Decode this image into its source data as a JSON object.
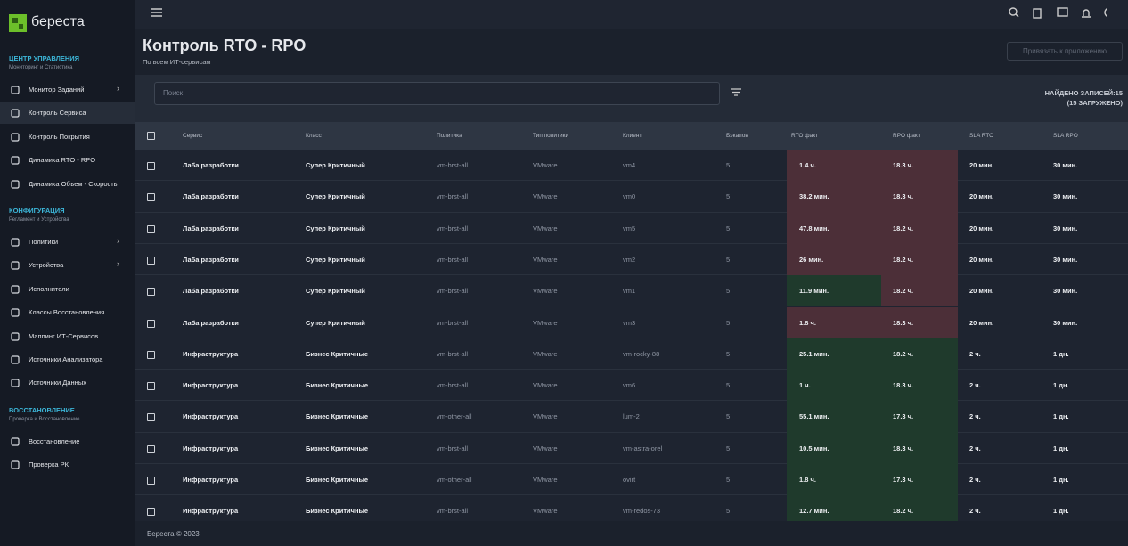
{
  "brand": "береста",
  "sidebar": [
    {
      "title": "ЦЕНТР УПРАВЛЕНИЯ",
      "subtitle": "Мониторинг и Статистика",
      "items": [
        {
          "label": "Монитор Заданий",
          "expandable": true
        },
        {
          "label": "Контроль Сервиса",
          "active": true
        },
        {
          "label": "Контроль Покрытия"
        },
        {
          "label": "Динамика RTO - RPO"
        },
        {
          "label": "Динамика Объем - Скорость"
        }
      ]
    },
    {
      "title": "КОНФИГУРАЦИЯ",
      "subtitle": "Регламент и Устройства",
      "items": [
        {
          "label": "Политики",
          "expandable": true
        },
        {
          "label": "Устройства",
          "expandable": true
        },
        {
          "label": "Исполнители"
        },
        {
          "label": "Классы Восстановления"
        },
        {
          "label": "Маппинг ИТ-Сервисов"
        },
        {
          "label": "Источники Анализатора"
        },
        {
          "label": "Источники Данных"
        }
      ]
    },
    {
      "title": "ВОССТАНОВЛЕНИЕ",
      "subtitle": "Проверка и Восстановление",
      "items": [
        {
          "label": "Восстановление"
        },
        {
          "label": "Проверка РК"
        }
      ]
    }
  ],
  "header": {
    "title": "Контроль RTO - RPO",
    "subtitle": "По всем ИТ-сервисам",
    "button": "Привязать к приложению"
  },
  "search": {
    "placeholder": "Поиск"
  },
  "records": {
    "found": "НАЙДЕНО ЗАПИСЕЙ:15",
    "loaded": "(15 ЗАГРУЖЕНО)"
  },
  "table": {
    "columns": [
      "Сервис",
      "Класс",
      "Политика",
      "Тип политики",
      "Клиент",
      "Бэкапов",
      "RTO факт",
      "RPO факт",
      "SLA RTO",
      "SLA RPO"
    ],
    "rows": [
      [
        "Лаба разработки",
        "Супер Критичный",
        "vm-brst-all",
        "VMware",
        "vm4",
        "5",
        "1.4 ч.",
        "18.3 ч.",
        "20 мин.",
        "30 мин."
      ],
      [
        "Лаба разработки",
        "Супер Критичный",
        "vm-brst-all",
        "VMware",
        "vm0",
        "5",
        "38.2 мин.",
        "18.3 ч.",
        "20 мин.",
        "30 мин."
      ],
      [
        "Лаба разработки",
        "Супер Критичный",
        "vm-brst-all",
        "VMware",
        "vm5",
        "5",
        "47.8 мин.",
        "18.2 ч.",
        "20 мин.",
        "30 мин."
      ],
      [
        "Лаба разработки",
        "Супер Критичный",
        "vm-brst-all",
        "VMware",
        "vm2",
        "5",
        "26 мин.",
        "18.2 ч.",
        "20 мин.",
        "30 мин."
      ],
      [
        "Лаба разработки",
        "Супер Критичный",
        "vm-brst-all",
        "VMware",
        "vm1",
        "5",
        "11.9 мин.",
        "18.2 ч.",
        "20 мин.",
        "30 мин."
      ],
      [
        "Лаба разработки",
        "Супер Критичный",
        "vm-brst-all",
        "VMware",
        "vm3",
        "5",
        "1.8 ч.",
        "18.3 ч.",
        "20 мин.",
        "30 мин."
      ],
      [
        "Инфраструктура",
        "Бизнес Критичные",
        "vm-brst-all",
        "VMware",
        "vm-rocky-88",
        "5",
        "25.1 мин.",
        "18.2 ч.",
        "2 ч.",
        "1 дн."
      ],
      [
        "Инфраструктура",
        "Бизнес Критичные",
        "vm-brst-all",
        "VMware",
        "vm6",
        "5",
        "1 ч.",
        "18.3 ч.",
        "2 ч.",
        "1 дн."
      ],
      [
        "Инфраструктура",
        "Бизнес Критичные",
        "vm-other-all",
        "VMware",
        "lum-2",
        "5",
        "55.1 мин.",
        "17.3 ч.",
        "2 ч.",
        "1 дн."
      ],
      [
        "Инфраструктура",
        "Бизнес Критичные",
        "vm-brst-all",
        "VMware",
        "vm-astra-orel",
        "5",
        "10.5 мин.",
        "18.3 ч.",
        "2 ч.",
        "1 дн."
      ],
      [
        "Инфраструктура",
        "Бизнес Критичные",
        "vm-other-all",
        "VMware",
        "ovirt",
        "5",
        "1.8 ч.",
        "17.3 ч.",
        "2 ч.",
        "1 дн."
      ],
      [
        "Инфраструктура",
        "Бизнес Критичные",
        "vm-brst-all",
        "VMware",
        "vm-redos-73",
        "5",
        "12.7 мин.",
        "18.2 ч.",
        "2 ч.",
        "1 дн."
      ]
    ],
    "status_colors": [
      [
        "#4c2f38",
        "#4c2f38"
      ],
      [
        "#4c2f38",
        "#4c2f38"
      ],
      [
        "#4c2f38",
        "#4c2f38"
      ],
      [
        "#4c2f38",
        "#4c2f38"
      ],
      [
        "#1f3a2c",
        "#4c2f38"
      ],
      [
        "#4c2f38",
        "#4c2f38"
      ],
      [
        "#1f3a2c",
        "#1f3a2c"
      ],
      [
        "#1f3a2c",
        "#1f3a2c"
      ],
      [
        "#1f3a2c",
        "#1f3a2c"
      ],
      [
        "#1f3a2c",
        "#1f3a2c"
      ],
      [
        "#1f3a2c",
        "#1f3a2c"
      ],
      [
        "#1f3a2c",
        "#1f3a2c"
      ]
    ]
  },
  "footer": "Береста © 2023"
}
